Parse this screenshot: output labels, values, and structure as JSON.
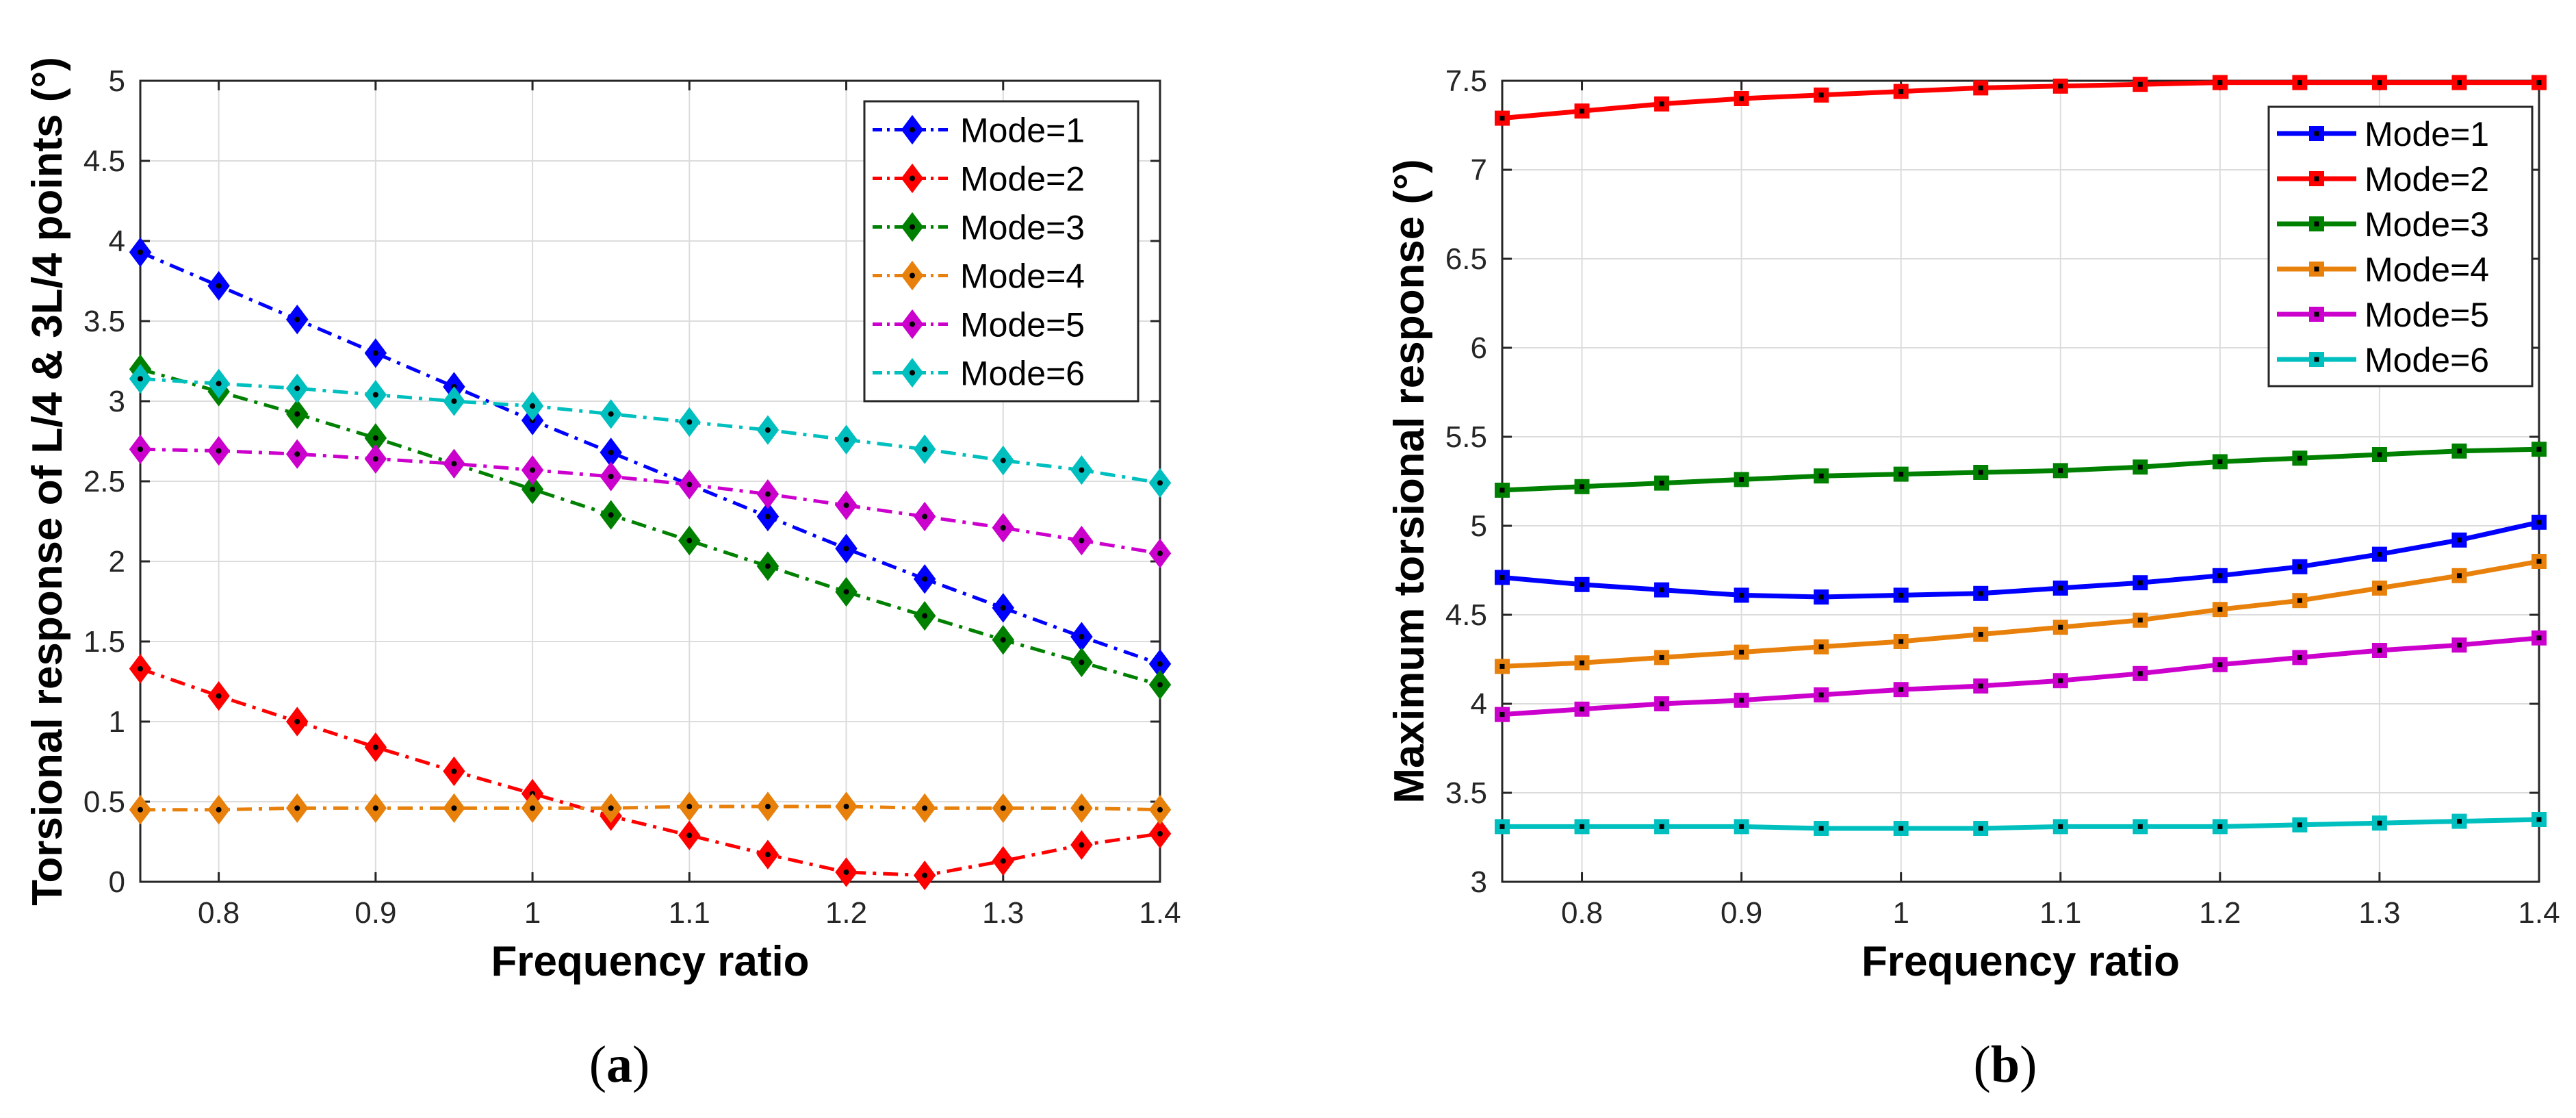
{
  "chart_data": [
    {
      "type": "line",
      "panel_label": "a",
      "xlabel": "Frequency ratio",
      "ylabel": "Torsional response of L/4 & 3L/4 points (°)",
      "xlim": [
        0.75,
        1.4
      ],
      "ylim": [
        0,
        5
      ],
      "xticks": [
        0.8,
        0.9,
        1,
        1.1,
        1.2,
        1.3,
        1.4
      ],
      "xtick_labels": [
        "0.8",
        "0.9",
        "1",
        "1.1",
        "1.2",
        "1.3",
        "1.4"
      ],
      "yticks": [
        0,
        0.5,
        1,
        1.5,
        2,
        2.5,
        3,
        3.5,
        4,
        4.5,
        5
      ],
      "ytick_labels": [
        "0",
        "0.5",
        "1",
        "1.5",
        "2",
        "2.5",
        "3",
        "3.5",
        "4",
        "4.5",
        "5"
      ],
      "grid": true,
      "legend_position": "top-right",
      "line_style": "dash-dot",
      "marker": "diamond",
      "x": [
        0.75,
        0.8,
        0.85,
        0.9,
        0.95,
        1.0,
        1.05,
        1.1,
        1.15,
        1.2,
        1.25,
        1.3,
        1.35,
        1.4
      ],
      "series": [
        {
          "name": "Mode=1",
          "color": "#0000ff",
          "values": [
            3.93,
            3.72,
            3.51,
            3.3,
            3.09,
            2.88,
            2.68,
            2.48,
            2.28,
            2.08,
            1.89,
            1.71,
            1.53,
            1.36
          ]
        },
        {
          "name": "Mode=2",
          "color": "#ff0000",
          "values": [
            1.33,
            1.16,
            1.0,
            0.84,
            0.69,
            0.55,
            0.41,
            0.29,
            0.17,
            0.06,
            0.04,
            0.13,
            0.23,
            0.3
          ]
        },
        {
          "name": "Mode=3",
          "color": "#008000",
          "values": [
            3.2,
            3.06,
            2.92,
            2.77,
            2.61,
            2.45,
            2.29,
            2.13,
            1.97,
            1.81,
            1.66,
            1.51,
            1.37,
            1.23
          ]
        },
        {
          "name": "Mode=4",
          "color": "#e8800c",
          "values": [
            0.45,
            0.45,
            0.46,
            0.46,
            0.46,
            0.46,
            0.46,
            0.47,
            0.47,
            0.47,
            0.46,
            0.46,
            0.46,
            0.45
          ]
        },
        {
          "name": "Mode=5",
          "color": "#cc00cc",
          "values": [
            2.7,
            2.69,
            2.67,
            2.64,
            2.61,
            2.57,
            2.53,
            2.48,
            2.42,
            2.35,
            2.28,
            2.21,
            2.13,
            2.05
          ]
        },
        {
          "name": "Mode=6",
          "color": "#00bfbf",
          "values": [
            3.14,
            3.11,
            3.08,
            3.04,
            3.0,
            2.97,
            2.92,
            2.87,
            2.82,
            2.76,
            2.7,
            2.63,
            2.57,
            2.49
          ]
        }
      ]
    },
    {
      "type": "line",
      "panel_label": "b",
      "xlabel": "Frequency ratio",
      "ylabel": "Maximum torsional response (°)",
      "xlim": [
        0.75,
        1.4
      ],
      "ylim": [
        3,
        7.5
      ],
      "xticks": [
        0.8,
        0.9,
        1,
        1.1,
        1.2,
        1.3,
        1.4
      ],
      "xtick_labels": [
        "0.8",
        "0.9",
        "1",
        "1.1",
        "1.2",
        "1.3",
        "1.4"
      ],
      "yticks": [
        3,
        3.5,
        4,
        4.5,
        5,
        5.5,
        6,
        6.5,
        7,
        7.5
      ],
      "ytick_labels": [
        "3",
        "3.5",
        "4",
        "4.5",
        "5",
        "5.5",
        "6",
        "6.5",
        "7",
        "7.5"
      ],
      "grid": true,
      "legend_position": "top-right",
      "line_style": "solid",
      "marker": "square",
      "x": [
        0.75,
        0.8,
        0.85,
        0.9,
        0.95,
        1.0,
        1.05,
        1.1,
        1.15,
        1.2,
        1.25,
        1.3,
        1.35,
        1.4
      ],
      "series": [
        {
          "name": "Mode=1",
          "color": "#0000ff",
          "values": [
            4.71,
            4.67,
            4.64,
            4.61,
            4.6,
            4.61,
            4.62,
            4.65,
            4.68,
            4.72,
            4.77,
            4.84,
            4.92,
            5.02
          ]
        },
        {
          "name": "Mode=2",
          "color": "#ff0000",
          "values": [
            7.29,
            7.33,
            7.37,
            7.4,
            7.42,
            7.44,
            7.46,
            7.47,
            7.48,
            7.49,
            7.49,
            7.49,
            7.49,
            7.49
          ]
        },
        {
          "name": "Mode=3",
          "color": "#008000",
          "values": [
            5.2,
            5.22,
            5.24,
            5.26,
            5.28,
            5.29,
            5.3,
            5.31,
            5.33,
            5.36,
            5.38,
            5.4,
            5.42,
            5.43
          ]
        },
        {
          "name": "Mode=4",
          "color": "#e8800c",
          "values": [
            4.21,
            4.23,
            4.26,
            4.29,
            4.32,
            4.35,
            4.39,
            4.43,
            4.47,
            4.53,
            4.58,
            4.65,
            4.72,
            4.8
          ]
        },
        {
          "name": "Mode=5",
          "color": "#cc00cc",
          "values": [
            3.94,
            3.97,
            4.0,
            4.02,
            4.05,
            4.08,
            4.1,
            4.13,
            4.17,
            4.22,
            4.26,
            4.3,
            4.33,
            4.37
          ]
        },
        {
          "name": "Mode=6",
          "color": "#00bfbf",
          "values": [
            3.31,
            3.31,
            3.31,
            3.31,
            3.3,
            3.3,
            3.3,
            3.31,
            3.31,
            3.31,
            3.32,
            3.33,
            3.34,
            3.35
          ]
        }
      ]
    }
  ]
}
